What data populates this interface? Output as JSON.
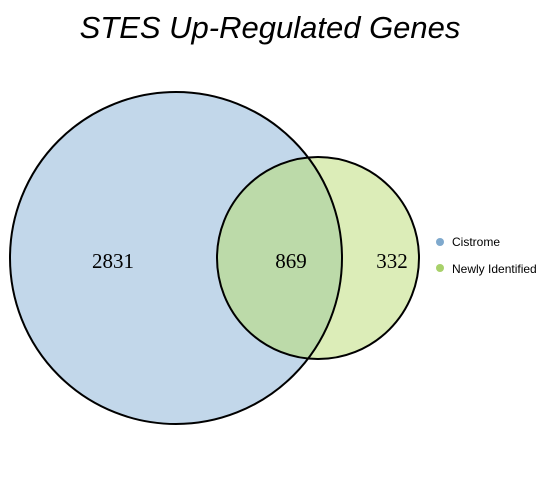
{
  "title": "STES Up-Regulated Genes",
  "sets": [
    {
      "name": "Cistrome",
      "color": "#c2d7ea",
      "legend_color": "#7fa9cd"
    },
    {
      "name": "Newly Identified",
      "color": "#dcedb8",
      "legend_color": "#a8d16a"
    }
  ],
  "overlap_color": "#bcdaa9",
  "counts": {
    "cistrome_only": "2831",
    "intersection": "869",
    "newly_identified_only": "332"
  }
}
